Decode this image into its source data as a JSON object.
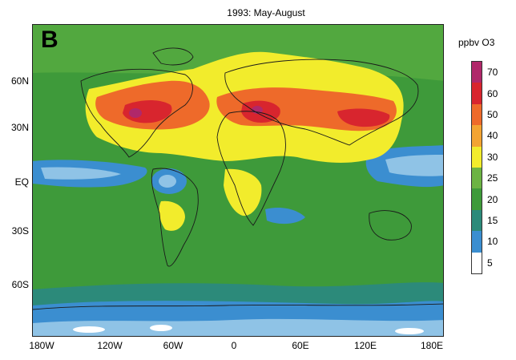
{
  "title": "1993: May-August",
  "panel_letter": "B",
  "y_axis_labels": [
    "60N",
    "30N",
    "EQ",
    "30S",
    "60S"
  ],
  "x_axis_labels": [
    "180W",
    "120W",
    "60W",
    "0",
    "60E",
    "120E",
    "180E"
  ],
  "legend": {
    "title": "ppbv O3",
    "levels": [
      "70",
      "60",
      "50",
      "40",
      "30",
      "25",
      "20",
      "15",
      "10",
      "5"
    ],
    "colors": [
      "#b0286a",
      "#d8252e",
      "#ee6a2a",
      "#f3a432",
      "#f2ec2c",
      "#6cb343",
      "#3e9a3a",
      "#2c8a7a",
      "#3b8ed0",
      "#ffffff"
    ]
  }
}
